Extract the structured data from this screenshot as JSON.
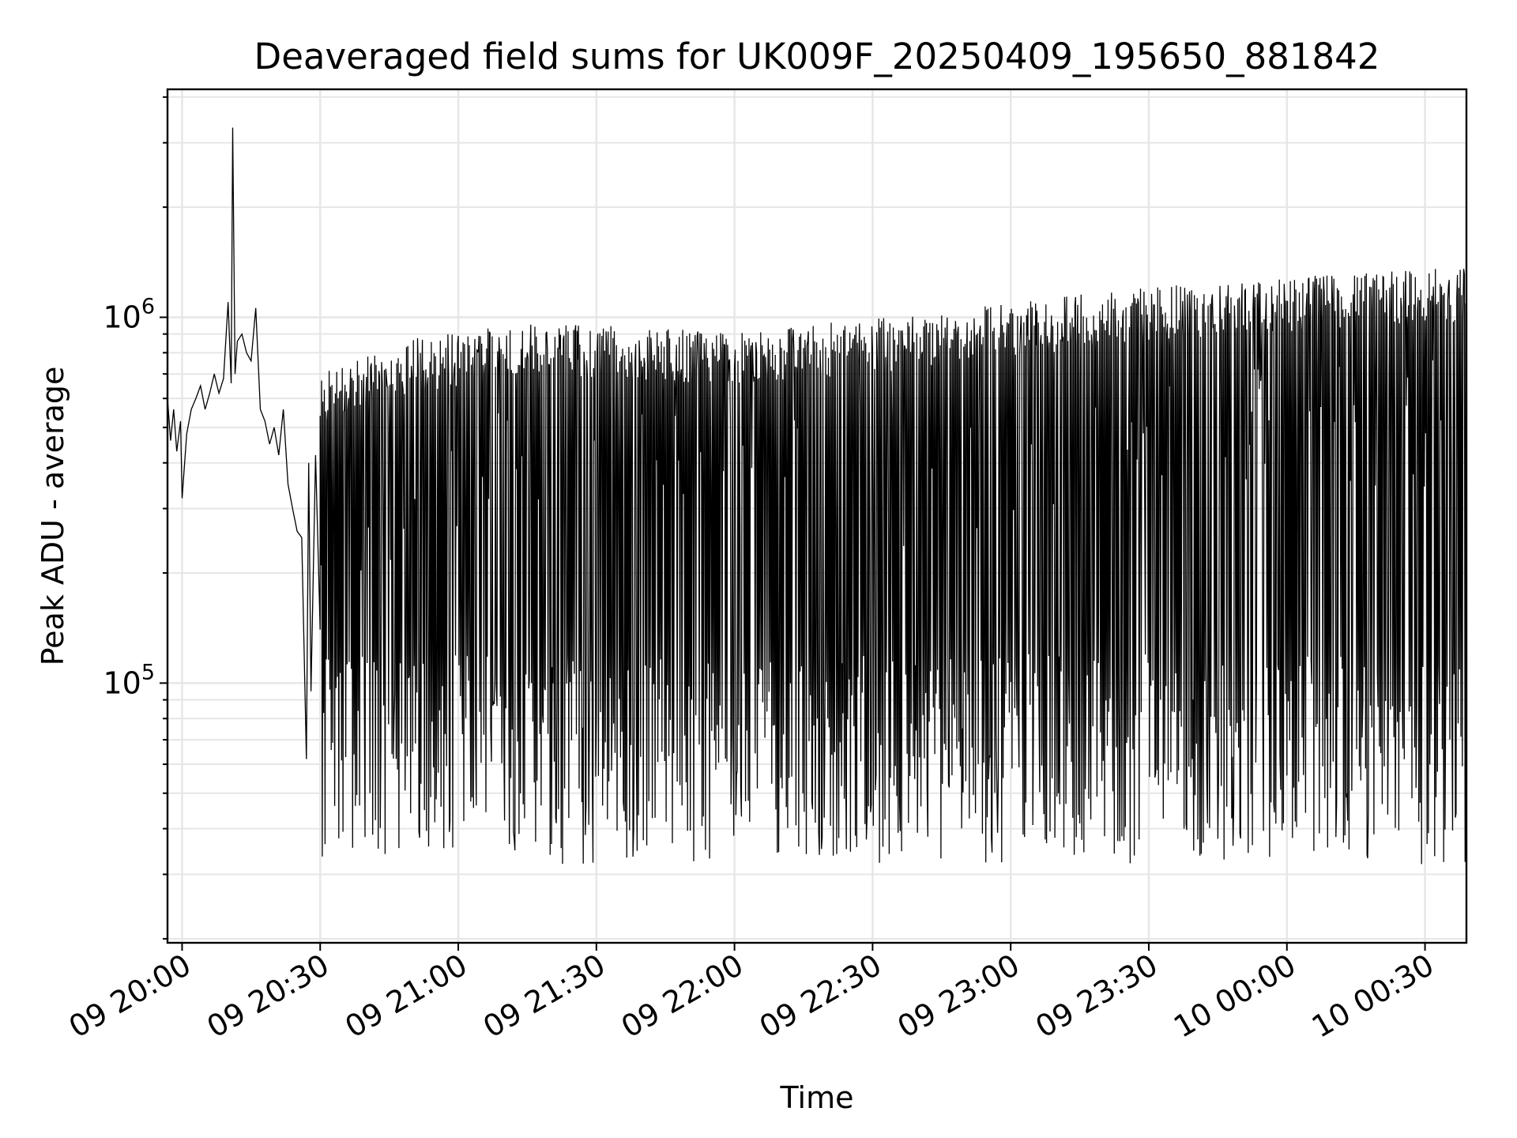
{
  "chart_data": {
    "type": "line",
    "title": "Deaveraged field sums for UK009F_20250409_195650_881842",
    "xlabel": "Time",
    "ylabel": "Peak ADU - average",
    "yscale": "log",
    "ylim": [
      19500,
      4200000
    ],
    "xlim": [
      "2025-04-09 19:56:50",
      "2025-04-10 00:39:00"
    ],
    "grid": true,
    "y_major_ticks": [
      {
        "value": 100000,
        "base": "10",
        "exp": "5"
      },
      {
        "value": 1000000,
        "base": "10",
        "exp": "6"
      }
    ],
    "x_ticks": [
      {
        "value": "2025-04-09 20:00:00",
        "label": "09 20:00"
      },
      {
        "value": "2025-04-09 20:30:00",
        "label": "09 20:30"
      },
      {
        "value": "2025-04-09 21:00:00",
        "label": "09 21:00"
      },
      {
        "value": "2025-04-09 21:30:00",
        "label": "09 21:30"
      },
      {
        "value": "2025-04-09 22:00:00",
        "label": "09 22:00"
      },
      {
        "value": "2025-04-09 22:30:00",
        "label": "09 22:30"
      },
      {
        "value": "2025-04-09 23:00:00",
        "label": "09 23:00"
      },
      {
        "value": "2025-04-09 23:30:00",
        "label": "09 23:30"
      },
      {
        "value": "2025-04-10 00:00:00",
        "label": "10 00:00"
      },
      {
        "value": "2025-04-10 00:30:00",
        "label": "10 00:30"
      }
    ],
    "series": [
      {
        "color": "#000000",
        "points": [
          [
            "2025-04-09 19:56:50",
            600000
          ],
          [
            "2025-04-09 19:57:30",
            460000
          ],
          [
            "2025-04-09 19:58:10",
            560000
          ],
          [
            "2025-04-09 19:58:50",
            430000
          ],
          [
            "2025-04-09 19:59:40",
            520000
          ],
          [
            "2025-04-09 20:00:00",
            320000
          ],
          [
            "2025-04-09 20:01:00",
            480000
          ],
          [
            "2025-04-09 20:02:00",
            560000
          ],
          [
            "2025-04-09 20:03:00",
            600000
          ],
          [
            "2025-04-09 20:04:00",
            650000
          ],
          [
            "2025-04-09 20:05:00",
            560000
          ],
          [
            "2025-04-09 20:06:00",
            620000
          ],
          [
            "2025-04-09 20:07:00",
            700000
          ],
          [
            "2025-04-09 20:08:00",
            620000
          ],
          [
            "2025-04-09 20:09:00",
            680000
          ],
          [
            "2025-04-09 20:10:00",
            1100000
          ],
          [
            "2025-04-09 20:10:40",
            660000
          ],
          [
            "2025-04-09 20:11:00",
            3300000
          ],
          [
            "2025-04-09 20:11:30",
            700000
          ],
          [
            "2025-04-09 20:12:00",
            860000
          ],
          [
            "2025-04-09 20:13:00",
            900000
          ],
          [
            "2025-04-09 20:14:00",
            800000
          ],
          [
            "2025-04-09 20:15:00",
            760000
          ],
          [
            "2025-04-09 20:16:00",
            1060000
          ],
          [
            "2025-04-09 20:17:00",
            560000
          ],
          [
            "2025-04-09 20:18:00",
            520000
          ],
          [
            "2025-04-09 20:19:00",
            450000
          ],
          [
            "2025-04-09 20:20:00",
            500000
          ],
          [
            "2025-04-09 20:21:00",
            420000
          ],
          [
            "2025-04-09 20:22:00",
            560000
          ],
          [
            "2025-04-09 20:23:00",
            350000
          ],
          [
            "2025-04-09 20:24:00",
            300000
          ],
          [
            "2025-04-09 20:25:00",
            260000
          ],
          [
            "2025-04-09 20:26:00",
            250000
          ],
          [
            "2025-04-09 20:27:00",
            62000
          ],
          [
            "2025-04-09 20:27:30",
            400000
          ],
          [
            "2025-04-09 20:28:00",
            95000
          ],
          [
            "2025-04-09 20:29:00",
            420000
          ],
          [
            "2025-04-09 20:30:00",
            140000
          ]
        ],
        "oscillation_from": "2025-04-09 20:30:00",
        "peak_trend": [
          [
            "2025-04-09 20:30:00",
            650000
          ],
          [
            "2025-04-09 20:45:00",
            780000
          ],
          [
            "2025-04-09 21:15:00",
            880000
          ],
          [
            "2025-04-09 22:00:00",
            830000
          ],
          [
            "2025-04-09 22:30:00",
            900000
          ],
          [
            "2025-04-09 23:00:00",
            1000000
          ],
          [
            "2025-04-09 23:30:00",
            1100000
          ],
          [
            "2025-04-10 00:00:00",
            1170000
          ],
          [
            "2025-04-10 00:39:00",
            1250000
          ]
        ],
        "trough_range": [
          32000,
          120000
        ]
      }
    ]
  }
}
